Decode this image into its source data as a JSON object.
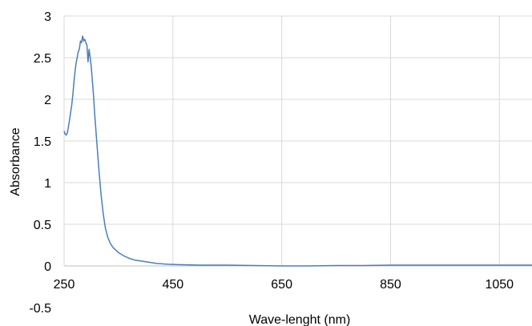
{
  "chart_data": {
    "type": "line",
    "title": "",
    "xlabel": "Wave-lenght (nm)",
    "ylabel": "Absorbance",
    "xlim": [
      250,
      1110
    ],
    "ylim": [
      -0.5,
      3
    ],
    "x_ticks": [
      250,
      450,
      650,
      850,
      1050
    ],
    "y_ticks": [
      3,
      2.5,
      2,
      1.5,
      1,
      0.5,
      0,
      -0.5
    ],
    "x_tick_labels": [
      "250",
      "450",
      "650",
      "850",
      "1050"
    ],
    "y_tick_labels": [
      "3",
      "2.5",
      "2",
      "1.5",
      "1",
      "0.5",
      "0",
      "-0.5"
    ],
    "grid": true,
    "legend": "none",
    "series": [
      {
        "color": "#4a7ebb",
        "x": [
          250,
          252,
          254,
          256,
          258,
          260,
          262,
          264,
          266,
          268,
          270,
          272,
          274,
          276,
          278,
          280,
          282,
          284,
          286,
          288,
          290,
          292,
          294,
          296,
          298,
          300,
          302,
          304,
          306,
          310,
          314,
          318,
          322,
          326,
          330,
          335,
          340,
          345,
          350,
          360,
          370,
          380,
          390,
          400,
          420,
          440,
          460,
          500,
          550,
          600,
          650,
          700,
          750,
          800,
          850,
          900,
          950,
          1000,
          1050,
          1110
        ],
        "y": [
          1.62,
          1.58,
          1.57,
          1.6,
          1.67,
          1.75,
          1.84,
          1.93,
          2.05,
          2.2,
          2.33,
          2.43,
          2.5,
          2.57,
          2.6,
          2.7,
          2.68,
          2.76,
          2.7,
          2.72,
          2.68,
          2.65,
          2.45,
          2.6,
          2.5,
          2.38,
          2.22,
          2.05,
          1.85,
          1.5,
          1.15,
          0.85,
          0.62,
          0.45,
          0.35,
          0.27,
          0.22,
          0.19,
          0.16,
          0.12,
          0.09,
          0.07,
          0.06,
          0.05,
          0.03,
          0.02,
          0.015,
          0.01,
          0.01,
          0.005,
          0.0,
          0.0,
          0.005,
          0.005,
          0.01,
          0.01,
          0.01,
          0.01,
          0.01,
          0.01
        ]
      }
    ]
  }
}
